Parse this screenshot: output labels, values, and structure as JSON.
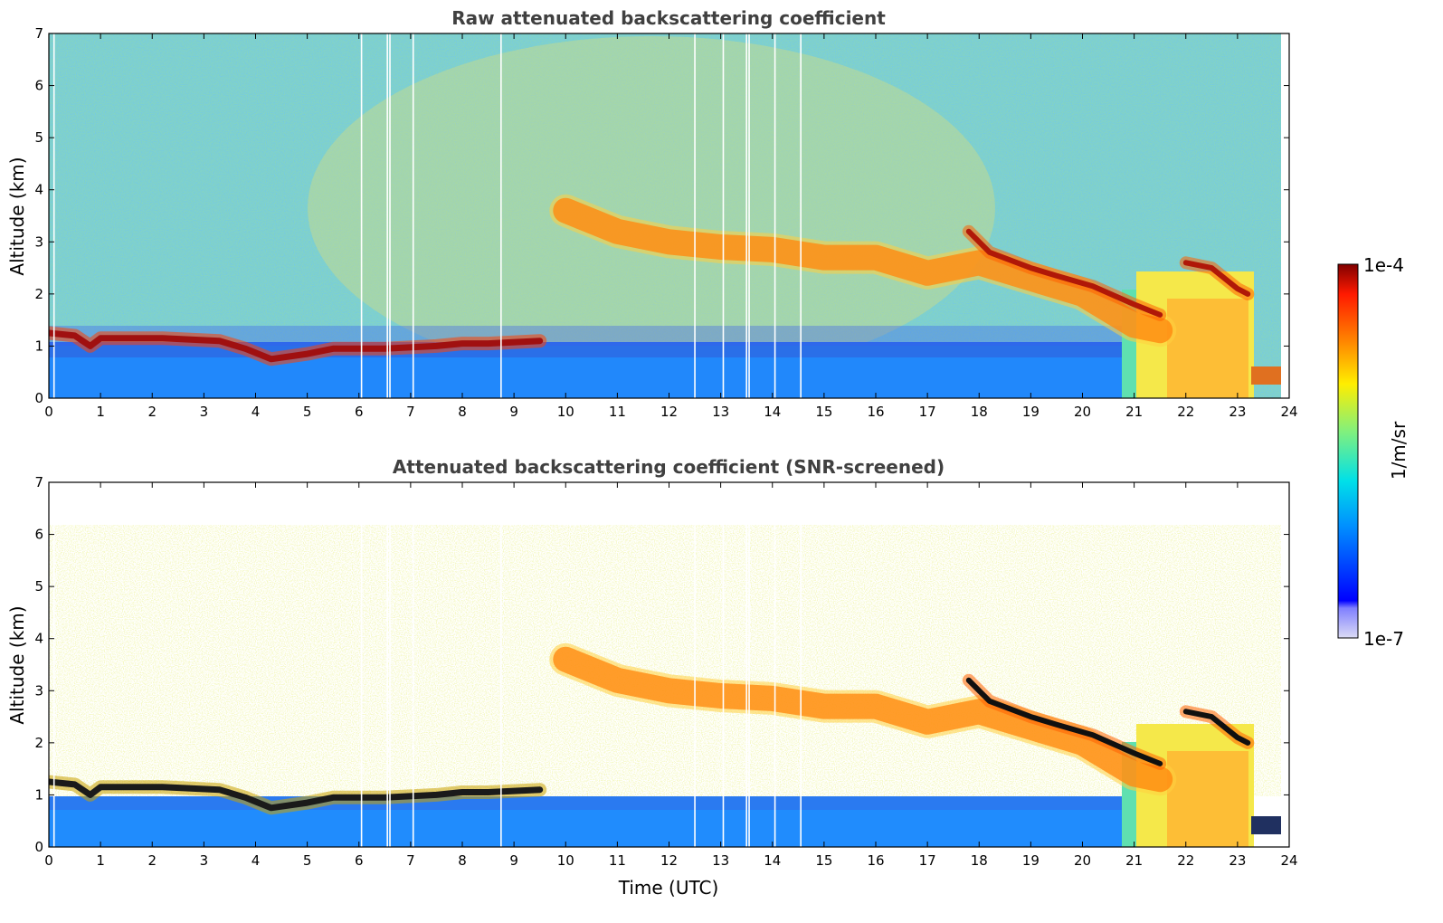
{
  "chart_data": [
    {
      "type": "heatmap",
      "title": "Raw attenuated backscattering coefficient",
      "xlabel": "",
      "ylabel": "Altitude (km)",
      "xlim": [
        0,
        24
      ],
      "ylim": [
        0,
        7
      ],
      "xticks": [
        "0",
        "1",
        "2",
        "3",
        "4",
        "5",
        "6",
        "7",
        "8",
        "9",
        "10",
        "11",
        "12",
        "13",
        "14",
        "15",
        "16",
        "17",
        "18",
        "19",
        "20",
        "21",
        "22",
        "23",
        "24"
      ],
      "yticks": [
        "0",
        "1",
        "2",
        "3",
        "4",
        "5",
        "6",
        "7"
      ],
      "data_end_hour": 23.8,
      "gap_times": [
        0.1,
        6.05,
        6.55,
        6.6,
        7.05,
        8.75,
        12.5,
        13.05,
        13.5,
        13.55,
        14.05,
        14.55
      ],
      "layers": [
        {
          "name": "boundary layer top",
          "points": [
            [
              0,
              1.25
            ],
            [
              0.5,
              1.2
            ],
            [
              0.8,
              1.0
            ],
            [
              1,
              1.15
            ],
            [
              1.5,
              1.15
            ],
            [
              2.2,
              1.15
            ],
            [
              3.3,
              1.1
            ],
            [
              3.8,
              0.95
            ],
            [
              4.3,
              0.75
            ],
            [
              5,
              0.85
            ],
            [
              5.5,
              0.95
            ],
            [
              6.5,
              0.95
            ],
            [
              7.5,
              1.0
            ],
            [
              8,
              1.05
            ],
            [
              8.5,
              1.05
            ],
            [
              9.5,
              1.1
            ]
          ]
        },
        {
          "name": "elevated aerosol layer",
          "points": [
            [
              10,
              3.6
            ],
            [
              11,
              3.2
            ],
            [
              12,
              3.0
            ],
            [
              13,
              2.9
            ],
            [
              14,
              2.85
            ],
            [
              15,
              2.7
            ],
            [
              16,
              2.7
            ],
            [
              17,
              2.4
            ],
            [
              18,
              2.6
            ],
            [
              19,
              2.3
            ],
            [
              20,
              2.0
            ],
            [
              21,
              1.4
            ],
            [
              21.5,
              1.3
            ]
          ]
        },
        {
          "name": "cloud layer",
          "points": [
            [
              17.8,
              3.2
            ],
            [
              18.2,
              2.8
            ],
            [
              19,
              2.5
            ],
            [
              19.5,
              2.35
            ],
            [
              20.2,
              2.15
            ],
            [
              21,
              1.8
            ],
            [
              21.5,
              1.6
            ]
          ]
        },
        {
          "name": "cloud layer upper",
          "points": [
            [
              22,
              2.6
            ],
            [
              22.5,
              2.5
            ],
            [
              23,
              2.1
            ],
            [
              23.2,
              2.0
            ]
          ]
        }
      ]
    },
    {
      "type": "heatmap",
      "title": "Attenuated backscattering coefficient (SNR-screened)",
      "xlabel": "Time (UTC)",
      "ylabel": "Altitude (km)",
      "xlim": [
        0,
        24
      ],
      "ylim": [
        0,
        7
      ],
      "xticks": [
        "0",
        "1",
        "2",
        "3",
        "4",
        "5",
        "6",
        "7",
        "8",
        "9",
        "10",
        "11",
        "12",
        "13",
        "14",
        "15",
        "16",
        "17",
        "18",
        "19",
        "20",
        "21",
        "22",
        "23",
        "24"
      ],
      "yticks": [
        "0",
        "1",
        "2",
        "3",
        "4",
        "5",
        "6",
        "7"
      ],
      "data_end_hour": 23.8
    }
  ],
  "colorbar": {
    "label": "1/m/sr",
    "max_label": "1e-4",
    "min_label": "1e-7",
    "scale": "log",
    "range": [
      1e-07,
      0.0001
    ],
    "colormap": "jet"
  }
}
